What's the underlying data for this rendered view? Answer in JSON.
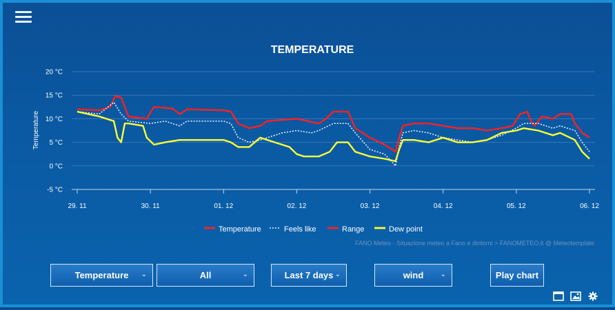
{
  "chart_data": {
    "type": "line",
    "title": "TEMPERATURE",
    "ylabel": "Temperature",
    "ylim": [
      -5,
      20
    ],
    "yticks": [
      "20 °C",
      "15 °C",
      "10 °C",
      "5 °C",
      "0 °C",
      "-5 °C"
    ],
    "ytick_values": [
      20,
      15,
      10,
      5,
      0,
      -5
    ],
    "x_range": [
      0,
      7
    ],
    "x_ticks": [
      "29. 11",
      "30. 11",
      "01. 12",
      "02. 12",
      "03. 12",
      "04. 12",
      "05. 12",
      "06. 12"
    ],
    "x_tick_values": [
      0,
      1,
      2,
      3,
      4,
      5,
      6,
      7
    ],
    "series": [
      {
        "name": "Temperature",
        "color": "#ff2020",
        "style": "solid",
        "points": [
          [
            0,
            12
          ],
          [
            0.3,
            11.8
          ],
          [
            0.45,
            12.5
          ],
          [
            0.52,
            14.8
          ],
          [
            0.6,
            14.5
          ],
          [
            0.7,
            10.5
          ],
          [
            0.95,
            10
          ],
          [
            1.05,
            12.5
          ],
          [
            1.3,
            12.2
          ],
          [
            1.4,
            11
          ],
          [
            1.5,
            12
          ],
          [
            2,
            11.8
          ],
          [
            2.1,
            11.5
          ],
          [
            2.2,
            9
          ],
          [
            2.35,
            8
          ],
          [
            2.5,
            8.5
          ],
          [
            2.6,
            9.5
          ],
          [
            3,
            10
          ],
          [
            3.3,
            9
          ],
          [
            3.4,
            10
          ],
          [
            3.5,
            11.5
          ],
          [
            3.7,
            11.5
          ],
          [
            3.8,
            8
          ],
          [
            4,
            6
          ],
          [
            4.2,
            4.5
          ],
          [
            4.35,
            3
          ],
          [
            4.4,
            6
          ],
          [
            4.45,
            8.5
          ],
          [
            4.6,
            9
          ],
          [
            4.8,
            9
          ],
          [
            5,
            8.5
          ],
          [
            5.2,
            8
          ],
          [
            5.4,
            8
          ],
          [
            5.6,
            7.5
          ],
          [
            5.8,
            8
          ],
          [
            5.95,
            8.5
          ],
          [
            6.05,
            11
          ],
          [
            6.15,
            11.5
          ],
          [
            6.2,
            9.5
          ],
          [
            6.25,
            8.5
          ],
          [
            6.35,
            10.5
          ],
          [
            6.5,
            10
          ],
          [
            6.6,
            11
          ],
          [
            6.75,
            11
          ],
          [
            6.8,
            9
          ],
          [
            6.9,
            7
          ],
          [
            7,
            6
          ]
        ]
      },
      {
        "name": "Feels like",
        "color": "#e8f0ff",
        "style": "dotted",
        "points": [
          [
            0,
            11.5
          ],
          [
            0.3,
            11
          ],
          [
            0.5,
            13.5
          ],
          [
            0.6,
            11
          ],
          [
            0.7,
            9.5
          ],
          [
            1,
            9
          ],
          [
            1.2,
            9.5
          ],
          [
            1.4,
            8.5
          ],
          [
            1.5,
            9.5
          ],
          [
            1.8,
            9.5
          ],
          [
            2,
            9.5
          ],
          [
            2.1,
            9
          ],
          [
            2.2,
            6
          ],
          [
            2.35,
            5
          ],
          [
            2.5,
            5.5
          ],
          [
            2.8,
            7
          ],
          [
            3,
            7.5
          ],
          [
            3.2,
            7
          ],
          [
            3.3,
            7.5
          ],
          [
            3.5,
            9
          ],
          [
            3.7,
            9
          ],
          [
            3.8,
            7
          ],
          [
            4,
            3.5
          ],
          [
            4.2,
            2.5
          ],
          [
            4.35,
            0
          ],
          [
            4.4,
            4
          ],
          [
            4.45,
            7
          ],
          [
            4.6,
            7.5
          ],
          [
            4.8,
            7
          ],
          [
            5,
            6
          ],
          [
            5.2,
            5.5
          ],
          [
            5.4,
            5
          ],
          [
            5.6,
            5.5
          ],
          [
            5.8,
            6.5
          ],
          [
            6,
            8
          ],
          [
            6.1,
            9
          ],
          [
            6.3,
            9
          ],
          [
            6.5,
            8
          ],
          [
            6.6,
            8.5
          ],
          [
            6.8,
            7.5
          ],
          [
            6.9,
            5
          ],
          [
            7,
            3
          ]
        ]
      },
      {
        "name": "Range",
        "color": "#ff2020",
        "style": "solid",
        "points": []
      },
      {
        "name": "Dew point",
        "color": "#ffff33",
        "style": "solid",
        "points": [
          [
            0,
            11.5
          ],
          [
            0.3,
            10.5
          ],
          [
            0.5,
            9.5
          ],
          [
            0.55,
            6
          ],
          [
            0.6,
            5
          ],
          [
            0.65,
            9
          ],
          [
            0.7,
            9
          ],
          [
            0.9,
            8.5
          ],
          [
            0.95,
            6
          ],
          [
            1.05,
            4.5
          ],
          [
            1.2,
            5
          ],
          [
            1.4,
            5.5
          ],
          [
            1.6,
            5.5
          ],
          [
            2,
            5.5
          ],
          [
            2.1,
            5
          ],
          [
            2.2,
            4
          ],
          [
            2.35,
            4
          ],
          [
            2.5,
            6
          ],
          [
            2.7,
            5
          ],
          [
            2.9,
            4
          ],
          [
            3,
            2.5
          ],
          [
            3.1,
            2
          ],
          [
            3.3,
            2
          ],
          [
            3.45,
            3
          ],
          [
            3.55,
            5
          ],
          [
            3.7,
            5
          ],
          [
            3.8,
            3
          ],
          [
            4,
            2
          ],
          [
            4.2,
            1.5
          ],
          [
            4.35,
            1
          ],
          [
            4.4,
            3.5
          ],
          [
            4.45,
            5.5
          ],
          [
            4.6,
            5.5
          ],
          [
            4.8,
            5
          ],
          [
            5,
            6
          ],
          [
            5.2,
            5
          ],
          [
            5.4,
            5
          ],
          [
            5.6,
            5.5
          ],
          [
            5.8,
            7
          ],
          [
            6,
            7.5
          ],
          [
            6.1,
            8
          ],
          [
            6.3,
            7.5
          ],
          [
            6.5,
            6.5
          ],
          [
            6.6,
            7
          ],
          [
            6.8,
            5.5
          ],
          [
            6.9,
            3
          ],
          [
            7,
            1.5
          ]
        ]
      }
    ],
    "legend": [
      "Temperature",
      "Feels like",
      "Range",
      "Dew point"
    ],
    "legend_position": "bottom",
    "credits": "FANO Meteo - Situazione meteo a Fano e dintorni > FANOMETEO.it @ Meteotemplate",
    "grid": true
  },
  "controls": {
    "param_select": "Temperature",
    "range_select": "All",
    "period_select": "Last 7 days",
    "overlay_select": "wind",
    "play_button": "Play chart"
  },
  "icons": {
    "menu": "hamburger-menu-icon",
    "window": "window-icon",
    "image": "image-icon",
    "settings": "gear-icon"
  },
  "colors": {
    "background": "#0a5aa3",
    "border": "#1b8fd6",
    "temperature": "#ff2020",
    "dew_point": "#ffff33",
    "feels_like": "#e8f0ff"
  }
}
